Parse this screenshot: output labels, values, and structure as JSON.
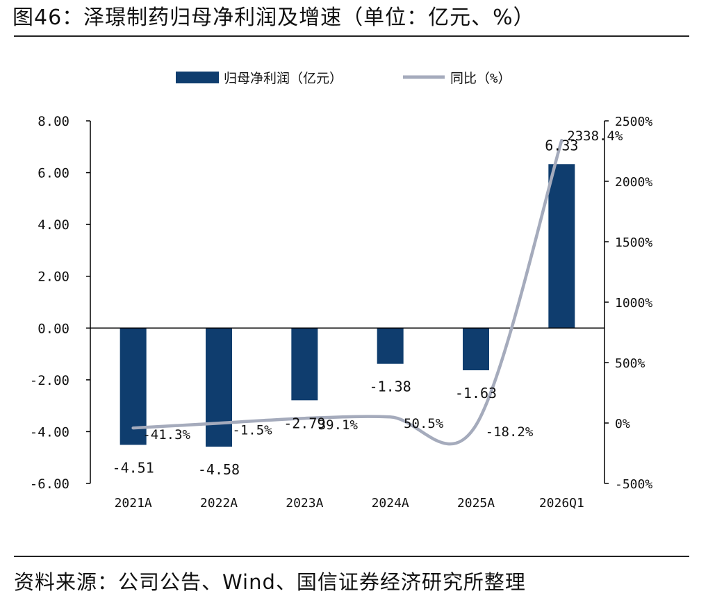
{
  "figure": {
    "title": "图46：泽璟制药归母净利润及增速（单位：亿元、%）",
    "source": "资料来源：公司公告、Wind、国信证券经济研究所整理"
  },
  "chart_data": {
    "type": "bar+line",
    "categories": [
      "2021A",
      "2022A",
      "2023A",
      "2024A",
      "2025A",
      "2026Q1"
    ],
    "series": [
      {
        "name": "归母净利润（亿元）",
        "type": "bar",
        "axis": "left",
        "values": [
          -4.51,
          -4.58,
          -2.79,
          -1.38,
          -1.63,
          6.33
        ],
        "labels": [
          "-4.51",
          "-4.58",
          "-2.79",
          "-1.38",
          "-1.63",
          "6.33"
        ],
        "color": "#0f3d6e"
      },
      {
        "name": "同比（%）",
        "type": "line",
        "axis": "right",
        "values": [
          -41.3,
          -1.5,
          39.1,
          50.5,
          -18.2,
          2338.4
        ],
        "labels": [
          "-41.3%",
          "-1.5%",
          "39.1%",
          "50.5%",
          "-18.2%",
          "2338.4%"
        ],
        "color": "#a5abbc"
      }
    ],
    "y_left": {
      "range": [
        -6,
        8
      ],
      "ticks": [
        8,
        6,
        4,
        2,
        0,
        -2,
        -4,
        -6
      ],
      "tick_labels": [
        "8.00",
        "6.00",
        "4.00",
        "2.00",
        "0.00",
        "-2.00",
        "-4.00",
        "-6.00"
      ]
    },
    "y_right": {
      "range": [
        -500,
        2500
      ],
      "ticks": [
        2500,
        2000,
        1500,
        1000,
        500,
        0,
        -500
      ],
      "tick_labels": [
        "2500%",
        "2000%",
        "1500%",
        "1000%",
        "500%",
        "0%",
        "-500%"
      ]
    },
    "legend_position": "top",
    "grid": false
  }
}
